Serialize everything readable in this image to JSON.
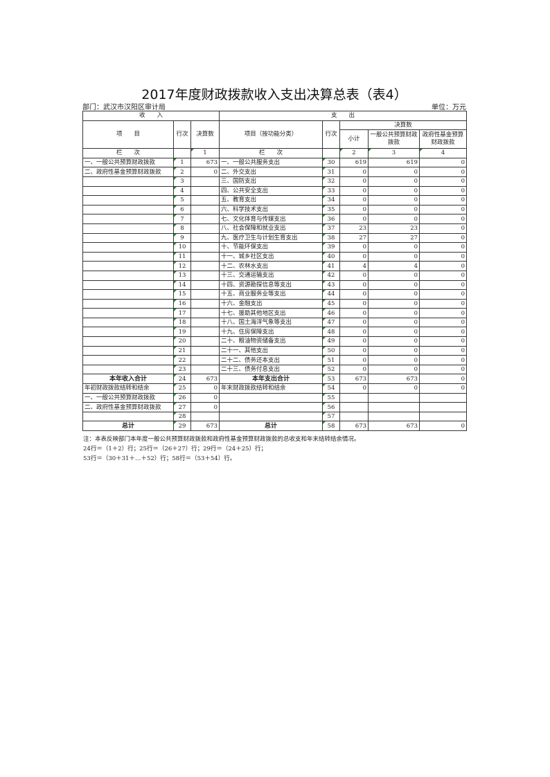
{
  "title": "2017年度财政拨款收入支出决算总表（表4）",
  "department": "部门：武汉市汉阳区审计局",
  "unit": "单位：万元",
  "header": {
    "income": "收　　入",
    "expense": "支　　出",
    "item": "项　　目",
    "line": "行次",
    "amount": "决算数",
    "expense_item": "项目（按功能分类）",
    "expense_line": "行次",
    "final_amount": "决算数",
    "subtotal": "小计",
    "general": "一般公共预算财政拨款",
    "fund": "政府性基金预算财政拨款",
    "col_label": "栏　　次",
    "col_1": "1",
    "col_label2": "栏　　次",
    "col_2": "2",
    "col_3": "3",
    "col_4": "4"
  },
  "rows": [
    {
      "ii": "一、一般公共预算财政拨款",
      "il": "1",
      "ia": "673",
      "ei": "一、一般公共服务支出",
      "el": "30",
      "s": "619",
      "g": "619",
      "f": "0"
    },
    {
      "ii": "二、政府性基金预算财政拨款",
      "il": "2",
      "ia": "0",
      "ei": "二、外交支出",
      "el": "31",
      "s": "0",
      "g": "0",
      "f": "0"
    },
    {
      "ii": "",
      "il": "3",
      "ia": "",
      "ei": "三、国防支出",
      "el": "32",
      "s": "0",
      "g": "0",
      "f": "0"
    },
    {
      "ii": "",
      "il": "4",
      "ia": "",
      "ei": "四、公共安全支出",
      "el": "33",
      "s": "0",
      "g": "0",
      "f": "0"
    },
    {
      "ii": "",
      "il": "5",
      "ia": "",
      "ei": "五、教育支出",
      "el": "34",
      "s": "0",
      "g": "0",
      "f": "0"
    },
    {
      "ii": "",
      "il": "6",
      "ia": "",
      "ei": "六、科学技术支出",
      "el": "35",
      "s": "0",
      "g": "0",
      "f": "0"
    },
    {
      "ii": "",
      "il": "7",
      "ia": "",
      "ei": "七、文化体育与传媒支出",
      "el": "36",
      "s": "0",
      "g": "0",
      "f": "0"
    },
    {
      "ii": "",
      "il": "8",
      "ia": "",
      "ei": "八、社会保障和就业支出",
      "el": "37",
      "s": "23",
      "g": "23",
      "f": "0"
    },
    {
      "ii": "",
      "il": "9",
      "ia": "",
      "ei": "九、医疗卫生与计划生育支出",
      "el": "38",
      "s": "27",
      "g": "27",
      "f": "0"
    },
    {
      "ii": "",
      "il": "10",
      "ia": "",
      "ei": "十、节能环保支出",
      "el": "39",
      "s": "0",
      "g": "0",
      "f": "0"
    },
    {
      "ii": "",
      "il": "11",
      "ia": "",
      "ei": "十一、城乡社区支出",
      "el": "40",
      "s": "0",
      "g": "0",
      "f": "0"
    },
    {
      "ii": "",
      "il": "12",
      "ia": "",
      "ei": "十二、农林水支出",
      "el": "41",
      "s": "4",
      "g": "4",
      "f": "0"
    },
    {
      "ii": "",
      "il": "13",
      "ia": "",
      "ei": "十三、交通运输支出",
      "el": "42",
      "s": "0",
      "g": "0",
      "f": "0"
    },
    {
      "ii": "",
      "il": "14",
      "ia": "",
      "ei": "十四、资源勘探信息等支出",
      "el": "43",
      "s": "0",
      "g": "0",
      "f": "0"
    },
    {
      "ii": "",
      "il": "15",
      "ia": "",
      "ei": "十五、商业服务业等支出",
      "el": "44",
      "s": "0",
      "g": "0",
      "f": "0"
    },
    {
      "ii": "",
      "il": "16",
      "ia": "",
      "ei": "十六、金融支出",
      "el": "45",
      "s": "0",
      "g": "0",
      "f": "0"
    },
    {
      "ii": "",
      "il": "17",
      "ia": "",
      "ei": "十七、援助其他地区支出",
      "el": "46",
      "s": "0",
      "g": "0",
      "f": "0"
    },
    {
      "ii": "",
      "il": "18",
      "ia": "",
      "ei": "十八、国土海洋气象等支出",
      "el": "47",
      "s": "0",
      "g": "0",
      "f": "0"
    },
    {
      "ii": "",
      "il": "19",
      "ia": "",
      "ei": "十九、住房保障支出",
      "el": "48",
      "s": "0",
      "g": "0",
      "f": "0"
    },
    {
      "ii": "",
      "il": "20",
      "ia": "",
      "ei": "二十、粮油物资储备支出",
      "el": "49",
      "s": "0",
      "g": "0",
      "f": "0"
    },
    {
      "ii": "",
      "il": "21",
      "ia": "",
      "ei": "二十一、其他支出",
      "el": "50",
      "s": "0",
      "g": "0",
      "f": "0"
    },
    {
      "ii": "",
      "il": "22",
      "ia": "",
      "ei": "二十二、债务还本支出",
      "el": "51",
      "s": "0",
      "g": "0",
      "f": "0"
    },
    {
      "ii": "",
      "il": "23",
      "ia": "",
      "ei": "二十三、债务付息支出",
      "el": "52",
      "s": "0",
      "g": "0",
      "f": "0"
    },
    {
      "ii": "本年收入合计",
      "il": "24",
      "ia": "673",
      "ei": "本年支出合计",
      "el": "53",
      "s": "673",
      "g": "673",
      "f": "0",
      "bold": true
    },
    {
      "ii": "年初财政拨款结转和结余",
      "il": "25",
      "ia": "0",
      "ei": "年末财政拨款结转和结余",
      "el": "54",
      "s": "0",
      "g": "0",
      "f": "0"
    },
    {
      "ii": "一、一般公共预算财政拨款",
      "il": "26",
      "ia": "0",
      "ei": "",
      "el": "55",
      "s": "",
      "g": "",
      "f": ""
    },
    {
      "ii": "二、政府性基金预算财政拨款",
      "il": "27",
      "ia": "0",
      "ei": "",
      "el": "56",
      "s": "",
      "g": "",
      "f": ""
    },
    {
      "ii": "",
      "il": "28",
      "ia": "",
      "ei": "",
      "el": "57",
      "s": "",
      "g": "",
      "f": ""
    },
    {
      "ii": "总计",
      "il": "29",
      "ia": "673",
      "ei": "总计",
      "el": "58",
      "s": "673",
      "g": "673",
      "f": "0",
      "bold": true
    }
  ],
  "notes": [
    "注：本表反映部门本年度一般公共预算财政拨款和政府性基金预算财政拨款的总收支和年末结转结余情况。",
    "24行＝（1＋2）行；25行＝（26＋27）行；29行＝（24＋25）行；",
    "53行＝（30＋31＋…＋52）行；58行＝（53＋54）行。"
  ]
}
